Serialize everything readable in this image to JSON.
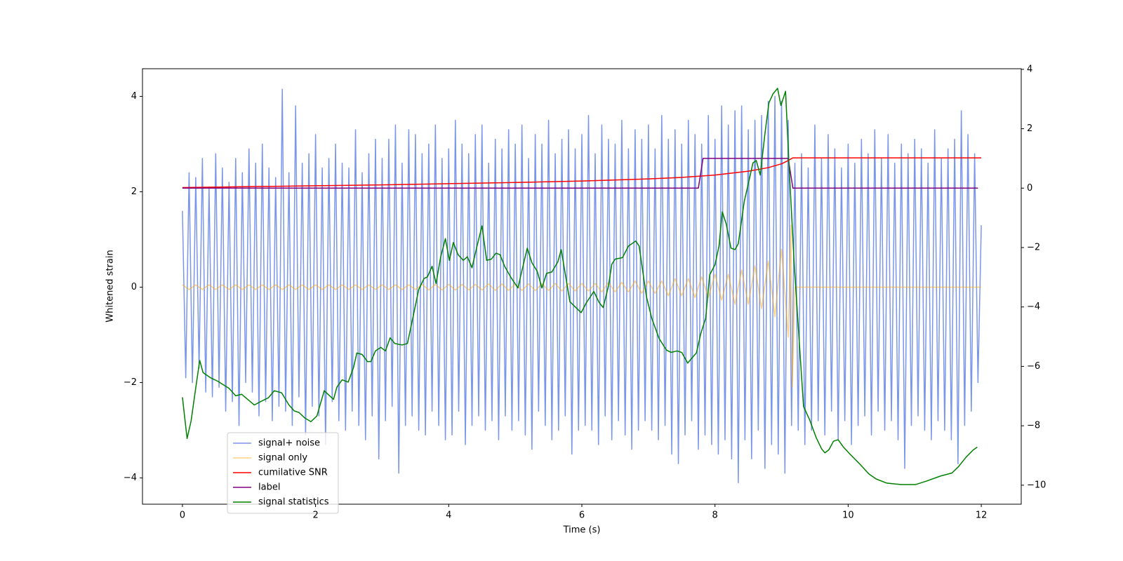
{
  "chart_data": {
    "type": "line",
    "xlabel": "Time (s)",
    "ylabel": "Whitened strain",
    "xlim": [
      -0.6,
      12.6
    ],
    "ylim": [
      -4.55,
      4.58
    ],
    "y2lim": [
      -10.64,
      4.02
    ],
    "xticks": [
      0,
      2,
      4,
      6,
      8,
      10,
      12
    ],
    "yticks": [
      {
        "value": -4,
        "label": "−4"
      },
      {
        "value": -2,
        "label": "−2"
      },
      0,
      2,
      4
    ],
    "y2ticks": [
      {
        "value": -10,
        "label": "−10"
      },
      {
        "value": -8,
        "label": "−8"
      },
      {
        "value": -6,
        "label": "−6"
      },
      {
        "value": -4,
        "label": "−4"
      },
      {
        "value": -2,
        "label": "−2"
      },
      0,
      2,
      4
    ],
    "legend": true,
    "series": [
      {
        "name": "signal+ noise",
        "color": "#4169e1",
        "alpha": 0.7,
        "x": [
          0,
          0.05,
          0.1,
          0.15,
          0.2,
          0.25,
          0.3,
          0.35,
          0.4,
          0.45,
          0.5,
          0.55,
          0.6,
          0.65,
          0.7,
          0.75,
          0.8,
          0.85,
          0.9,
          0.95,
          1,
          1.05,
          1.1,
          1.15,
          1.2,
          1.25,
          1.3,
          1.35,
          1.4,
          1.45,
          1.5,
          1.55,
          1.6,
          1.65,
          1.7,
          1.75,
          1.8,
          1.85,
          1.9,
          1.95,
          2,
          2.05,
          2.1,
          2.15,
          2.2,
          2.25,
          2.3,
          2.35,
          2.4,
          2.45,
          2.5,
          2.55,
          2.6,
          2.65,
          2.7,
          2.75,
          2.8,
          2.85,
          2.9,
          2.95,
          3,
          3.05,
          3.1,
          3.15,
          3.2,
          3.25,
          3.3,
          3.35,
          3.4,
          3.45,
          3.5,
          3.55,
          3.6,
          3.65,
          3.7,
          3.75,
          3.8,
          3.85,
          3.9,
          3.95,
          4,
          4.05,
          4.1,
          4.15,
          4.2,
          4.25,
          4.3,
          4.35,
          4.4,
          4.45,
          4.5,
          4.55,
          4.6,
          4.65,
          4.7,
          4.75,
          4.8,
          4.85,
          4.9,
          4.95,
          5,
          5.05,
          5.1,
          5.15,
          5.2,
          5.25,
          5.3,
          5.35,
          5.4,
          5.45,
          5.5,
          5.55,
          5.6,
          5.65,
          5.7,
          5.75,
          5.8,
          5.85,
          5.9,
          5.95,
          6,
          6.05,
          6.1,
          6.15,
          6.2,
          6.25,
          6.3,
          6.35,
          6.4,
          6.45,
          6.5,
          6.55,
          6.6,
          6.65,
          6.7,
          6.75,
          6.8,
          6.85,
          6.9,
          6.95,
          7,
          7.05,
          7.1,
          7.15,
          7.2,
          7.25,
          7.3,
          7.35,
          7.4,
          7.45,
          7.5,
          7.55,
          7.6,
          7.65,
          7.7,
          7.75,
          7.8,
          7.85,
          7.9,
          7.95,
          8,
          8.05,
          8.1,
          8.15,
          8.2,
          8.25,
          8.3,
          8.35,
          8.4,
          8.45,
          8.5,
          8.55,
          8.6,
          8.65,
          8.7,
          8.75,
          8.8,
          8.85,
          8.9,
          8.95,
          9,
          9.05,
          9.1,
          9.15,
          9.2,
          9.25,
          9.3,
          9.35,
          9.4,
          9.45,
          9.5,
          9.55,
          9.6,
          9.65,
          9.7,
          9.75,
          9.8,
          9.85,
          9.9,
          9.95,
          10,
          10.05,
          10.1,
          10.15,
          10.2,
          10.25,
          10.3,
          10.35,
          10.4,
          10.45,
          10.5,
          10.55,
          10.6,
          10.65,
          10.7,
          10.75,
          10.8,
          10.85,
          10.9,
          10.95,
          11,
          11.05,
          11.1,
          11.15,
          11.2,
          11.25,
          11.3,
          11.35,
          11.4,
          11.45,
          11.5,
          11.55,
          11.6,
          11.65,
          11.7,
          11.75,
          11.8,
          11.85,
          11.9,
          11.95,
          12
        ],
        "values": [
          1.6,
          -1.9,
          2.4,
          -2.0,
          2.3,
          -1.7,
          2.7,
          -2.2,
          2.1,
          -2.3,
          2.8,
          -2.1,
          2.5,
          -2.6,
          2.2,
          -2.4,
          2.7,
          -2.9,
          2.4,
          -2.0,
          2.9,
          -2.2,
          2.6,
          -2.7,
          3.0,
          -2.4,
          2.5,
          -2.8,
          2.3,
          -2.5,
          4.15,
          -2.6,
          2.4,
          -2.9,
          3.8,
          -2.3,
          2.6,
          -3.1,
          2.8,
          -2.5,
          3.2,
          -2.7,
          2.5,
          -3.3,
          2.7,
          -2.4,
          3.0,
          -2.8,
          2.6,
          -3.0,
          2.5,
          -2.6,
          3.3,
          -2.9,
          2.4,
          -3.2,
          2.8,
          -2.7,
          3.1,
          -3.6,
          2.7,
          -2.8,
          3.1,
          -2.5,
          3.4,
          -3.9,
          2.6,
          -2.9,
          3.3,
          -2.7,
          3.2,
          -3.0,
          2.8,
          -3.1,
          3.0,
          -2.6,
          3.4,
          -2.9,
          2.7,
          -3.2,
          2.9,
          -3.1,
          3.5,
          -2.6,
          3.0,
          -3.3,
          2.8,
          -2.9,
          3.2,
          -2.7,
          3.4,
          -3.0,
          2.6,
          -2.8,
          3.1,
          -3.2,
          2.9,
          -2.7,
          3.3,
          -3.0,
          3.0,
          -2.8,
          3.4,
          -3.1,
          2.7,
          -3.4,
          3.2,
          -2.6,
          3.0,
          -2.9,
          3.5,
          -3.2,
          2.8,
          -3.0,
          3.1,
          -2.7,
          3.3,
          -3.5,
          2.9,
          -3.0,
          3.2,
          -2.9,
          3.6,
          -3.0,
          2.8,
          -3.3,
          3.4,
          -2.7,
          3.1,
          -3.2,
          3.0,
          -2.8,
          3.5,
          -3.1,
          2.9,
          -3.4,
          3.3,
          -3.0,
          3.1,
          -2.8,
          3.4,
          -3.0,
          2.9,
          -3.2,
          3.6,
          -2.9,
          3.1,
          -3.5,
          3.3,
          -3.7,
          3.0,
          -3.1,
          3.5,
          -2.8,
          3.2,
          -3.4,
          3.0,
          -3.1,
          3.6,
          -3.3,
          3.1,
          -3.5,
          3.8,
          -3.2,
          3.4,
          -3.6,
          3.7,
          -4.1,
          3.8,
          -3.2,
          3.3,
          -3.6,
          3.5,
          -3.0,
          3.6,
          -3.8,
          3.9,
          -3.3,
          4.0,
          -3.5,
          3.9,
          -3.9,
          3.5,
          -2.9,
          2.6,
          -3.0,
          2.8,
          -3.3,
          2.5,
          -3.0,
          3.4,
          -2.8,
          2.7,
          -3.1,
          3.2,
          -2.6,
          2.9,
          -3.2,
          2.5,
          -2.8,
          3.0,
          -3.3,
          2.6,
          -2.9,
          3.1,
          -2.7,
          2.8,
          -3.1,
          3.3,
          -2.6,
          2.7,
          -3.0,
          3.2,
          -2.8,
          2.6,
          -3.2,
          3.0,
          -3.8,
          2.8,
          -2.9,
          3.1,
          -2.7,
          2.9,
          -3.0,
          2.6,
          -3.2,
          3.3,
          -2.8,
          2.7,
          -3.0,
          2.9,
          -3.2,
          3.1,
          -3.7,
          3.7,
          -2.9,
          3.2,
          -2.6,
          2.8,
          -2.0,
          1.3
        ]
      },
      {
        "name": "signal only",
        "color": "#ffa500",
        "alpha": 0.5,
        "x": [
          0,
          0.1,
          0.2,
          0.3,
          0.4,
          0.5,
          0.6,
          0.7,
          0.8,
          0.9,
          1,
          1.1,
          1.2,
          1.3,
          1.4,
          1.5,
          1.6,
          1.7,
          1.8,
          1.9,
          2,
          2.1,
          2.2,
          2.3,
          2.4,
          2.5,
          2.6,
          2.7,
          2.8,
          2.9,
          3,
          3.1,
          3.2,
          3.3,
          3.4,
          3.5,
          3.6,
          3.7,
          3.8,
          3.9,
          4,
          4.1,
          4.2,
          4.3,
          4.4,
          4.5,
          4.6,
          4.7,
          4.8,
          4.9,
          5,
          5.1,
          5.2,
          5.3,
          5.4,
          5.5,
          5.6,
          5.7,
          5.8,
          5.9,
          6,
          6.1,
          6.2,
          6.3,
          6.4,
          6.5,
          6.6,
          6.7,
          6.8,
          6.9,
          7,
          7.1,
          7.2,
          7.3,
          7.4,
          7.5,
          7.6,
          7.7,
          7.8,
          7.9,
          8,
          8.1,
          8.2,
          8.3,
          8.4,
          8.5,
          8.6,
          8.7,
          8.8,
          8.9,
          9,
          9.1,
          9.14,
          9.16,
          9.2,
          12
        ],
        "values": [
          0.05,
          -0.05,
          0.05,
          -0.05,
          0.05,
          -0.05,
          0.05,
          -0.05,
          0.05,
          -0.05,
          0.05,
          -0.05,
          0.05,
          -0.05,
          0.05,
          -0.05,
          0.05,
          -0.05,
          0.05,
          -0.05,
          0.05,
          -0.05,
          0.05,
          -0.05,
          0.05,
          -0.05,
          0.05,
          -0.05,
          0.05,
          -0.05,
          0.05,
          -0.05,
          0.05,
          -0.05,
          0.05,
          -0.05,
          0.06,
          -0.06,
          0.06,
          -0.06,
          0.06,
          -0.06,
          0.06,
          -0.06,
          0.06,
          -0.06,
          0.07,
          -0.07,
          0.07,
          -0.07,
          0.07,
          -0.07,
          0.07,
          -0.07,
          0.07,
          -0.07,
          0.08,
          -0.08,
          0.08,
          -0.08,
          0.08,
          -0.08,
          0.08,
          -0.1,
          0.1,
          -0.1,
          0.1,
          -0.1,
          0.13,
          -0.13,
          0.13,
          -0.13,
          0.13,
          -0.18,
          0.18,
          -0.18,
          0.18,
          -0.22,
          0.22,
          -0.22,
          0.27,
          -0.27,
          0.27,
          -0.36,
          0.36,
          -0.36,
          0.45,
          -0.45,
          0.55,
          -0.62,
          0.8,
          -1.05,
          1.3,
          -2.1,
          0,
          0
        ]
      },
      {
        "name": "cumilative SNR",
        "color": "#ff0000",
        "axis": "y2",
        "x": [
          0,
          1,
          2,
          3,
          4,
          5,
          6,
          7,
          7.5,
          8,
          8.5,
          8.8,
          9.0,
          9.1,
          9.17,
          12
        ],
        "values": [
          0.02,
          0.05,
          0.08,
          0.11,
          0.15,
          0.19,
          0.24,
          0.31,
          0.36,
          0.44,
          0.57,
          0.69,
          0.82,
          0.93,
          1.02,
          1.02
        ]
      },
      {
        "name": "label",
        "color": "#800080",
        "axis": "y2",
        "x": [
          0,
          7.75,
          7.82,
          9.1,
          9.17,
          11.95
        ],
        "values": [
          0,
          0,
          1,
          1,
          0,
          0
        ]
      },
      {
        "name": "signal statistics",
        "color": "#008000",
        "axis": "y2",
        "x": [
          0,
          0.07,
          0.13,
          0.21,
          0.26,
          0.31,
          0.42,
          0.53,
          0.7,
          0.8,
          0.89,
          1.08,
          1.18,
          1.29,
          1.38,
          1.49,
          1.6,
          1.68,
          1.75,
          1.84,
          1.93,
          2.02,
          2.13,
          2.22,
          2.27,
          2.32,
          2.4,
          2.49,
          2.57,
          2.62,
          2.7,
          2.78,
          2.83,
          2.9,
          2.98,
          3.05,
          3.12,
          3.19,
          3.3,
          3.38,
          3.46,
          3.55,
          3.63,
          3.68,
          3.75,
          3.81,
          3.88,
          3.95,
          4.01,
          4.07,
          4.14,
          4.22,
          4.28,
          4.35,
          4.42,
          4.5,
          4.57,
          4.64,
          4.71,
          4.77,
          4.84,
          4.93,
          5.04,
          5.09,
          5.18,
          5.25,
          5.33,
          5.4,
          5.47,
          5.55,
          5.64,
          5.69,
          5.82,
          5.91,
          5.99,
          6.07,
          6.18,
          6.26,
          6.32,
          6.4,
          6.45,
          6.5,
          6.61,
          6.7,
          6.81,
          6.86,
          6.97,
          7.05,
          7.16,
          7.27,
          7.34,
          7.43,
          7.5,
          7.59,
          7.68,
          7.72,
          7.79,
          7.86,
          7.92,
          8.0,
          8.06,
          8.11,
          8.17,
          8.24,
          8.3,
          8.35,
          8.44,
          8.51,
          8.57,
          8.62,
          8.68,
          8.75,
          8.81,
          8.87,
          8.94,
          8.99,
          9.06,
          9.11,
          9.19,
          9.25,
          9.33,
          9.42,
          9.52,
          9.6,
          9.65,
          9.71,
          9.78,
          9.85,
          9.93,
          10.03,
          10.18,
          10.31,
          10.42,
          10.58,
          10.8,
          11.01,
          11.18,
          11.39,
          11.56,
          11.66,
          11.77,
          11.88,
          11.94
        ],
        "values": [
          -7.04,
          -8.43,
          -7.84,
          -6.57,
          -5.8,
          -6.21,
          -6.38,
          -6.5,
          -6.74,
          -6.99,
          -6.94,
          -7.3,
          -7.18,
          -7.06,
          -6.82,
          -6.89,
          -7.3,
          -7.5,
          -7.55,
          -7.74,
          -7.86,
          -7.67,
          -6.82,
          -7.01,
          -7.11,
          -6.7,
          -6.45,
          -6.53,
          -6.04,
          -5.55,
          -5.6,
          -5.84,
          -5.84,
          -5.48,
          -5.36,
          -5.48,
          -5.04,
          -5.23,
          -5.28,
          -5.23,
          -4.38,
          -3.41,
          -3.04,
          -2.99,
          -2.63,
          -3.21,
          -2.31,
          -1.7,
          -2.43,
          -1.83,
          -2.24,
          -2.43,
          -2.31,
          -2.68,
          -2.0,
          -1.27,
          -2.43,
          -2.39,
          -2.19,
          -2.24,
          -2.63,
          -2.99,
          -3.36,
          -2.87,
          -2.02,
          -2.51,
          -2.8,
          -3.36,
          -2.87,
          -2.82,
          -2.48,
          -2.07,
          -3.82,
          -4.02,
          -4.19,
          -3.85,
          -3.48,
          -3.85,
          -4.02,
          -3.29,
          -2.56,
          -2.39,
          -2.34,
          -1.95,
          -1.78,
          -1.95,
          -3.65,
          -4.38,
          -5.06,
          -5.45,
          -5.53,
          -5.48,
          -5.53,
          -5.89,
          -5.65,
          -5.55,
          -4.87,
          -4.38,
          -2.92,
          -2.58,
          -1.95,
          -0.8,
          -1.22,
          -2.02,
          -2.07,
          -1.87,
          -0.44,
          0.24,
          0.85,
          0.93,
          0.44,
          1.83,
          2.87,
          3.17,
          3.36,
          2.78,
          3.26,
          0.85,
          -2.56,
          -4.63,
          -7.35,
          -7.79,
          -8.4,
          -8.77,
          -8.91,
          -8.81,
          -8.52,
          -8.47,
          -8.72,
          -8.96,
          -9.3,
          -9.62,
          -9.79,
          -9.93,
          -9.98,
          -9.98,
          -9.86,
          -9.69,
          -9.59,
          -9.37,
          -9.06,
          -8.81,
          -8.72
        ]
      }
    ]
  }
}
